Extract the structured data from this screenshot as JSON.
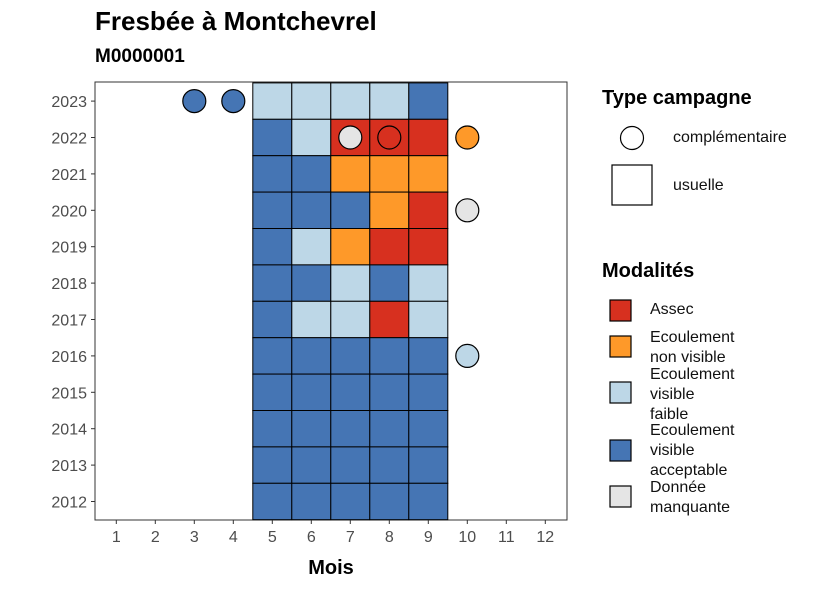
{
  "chart_data": {
    "type": "heatmap",
    "title": "Fresbée à Montchevrel",
    "subtitle": "M0000001",
    "xlabel": "Mois",
    "ylabel": "",
    "x_ticks": [
      "1",
      "2",
      "3",
      "4",
      "5",
      "6",
      "7",
      "8",
      "9",
      "10",
      "11",
      "12"
    ],
    "y_ticks": [
      "2012",
      "2013",
      "2014",
      "2015",
      "2016",
      "2017",
      "2018",
      "2019",
      "2020",
      "2021",
      "2022",
      "2023"
    ],
    "grid": false,
    "legend_position": "right",
    "colors": {
      "Assec": "#d7301f",
      "Ecoulement non visible": "#fe9929",
      "Ecoulement visible faible": "#bdd7e7",
      "Ecoulement visible acceptable": "#4575b4",
      "Donnée manquante": "#e5e5e5"
    },
    "usuelle": [
      {
        "year": 2023,
        "cells": {
          "5": "Ecoulement visible faible",
          "6": "Ecoulement visible faible",
          "7": "Ecoulement visible faible",
          "8": "Ecoulement visible faible",
          "9": "Ecoulement visible acceptable"
        }
      },
      {
        "year": 2022,
        "cells": {
          "5": "Ecoulement visible acceptable",
          "6": "Ecoulement visible faible",
          "7": "Assec",
          "8": "Assec",
          "9": "Assec"
        }
      },
      {
        "year": 2021,
        "cells": {
          "5": "Ecoulement visible acceptable",
          "6": "Ecoulement visible acceptable",
          "7": "Ecoulement non visible",
          "8": "Ecoulement non visible",
          "9": "Ecoulement non visible"
        }
      },
      {
        "year": 2020,
        "cells": {
          "5": "Ecoulement visible acceptable",
          "6": "Ecoulement visible acceptable",
          "7": "Ecoulement visible acceptable",
          "8": "Ecoulement non visible",
          "9": "Assec"
        }
      },
      {
        "year": 2019,
        "cells": {
          "5": "Ecoulement visible acceptable",
          "6": "Ecoulement visible faible",
          "7": "Ecoulement non visible",
          "8": "Assec",
          "9": "Assec"
        }
      },
      {
        "year": 2018,
        "cells": {
          "5": "Ecoulement visible acceptable",
          "6": "Ecoulement visible acceptable",
          "7": "Ecoulement visible faible",
          "8": "Ecoulement visible acceptable",
          "9": "Ecoulement visible faible"
        }
      },
      {
        "year": 2017,
        "cells": {
          "5": "Ecoulement visible acceptable",
          "6": "Ecoulement visible faible",
          "7": "Ecoulement visible faible",
          "8": "Assec",
          "9": "Ecoulement visible faible"
        }
      },
      {
        "year": 2016,
        "cells": {
          "5": "Ecoulement visible acceptable",
          "6": "Ecoulement visible acceptable",
          "7": "Ecoulement visible acceptable",
          "8": "Ecoulement visible acceptable",
          "9": "Ecoulement visible acceptable"
        }
      },
      {
        "year": 2015,
        "cells": {
          "5": "Ecoulement visible acceptable",
          "6": "Ecoulement visible acceptable",
          "7": "Ecoulement visible acceptable",
          "8": "Ecoulement visible acceptable",
          "9": "Ecoulement visible acceptable"
        }
      },
      {
        "year": 2014,
        "cells": {
          "5": "Ecoulement visible acceptable",
          "6": "Ecoulement visible acceptable",
          "7": "Ecoulement visible acceptable",
          "8": "Ecoulement visible acceptable",
          "9": "Ecoulement visible acceptable"
        }
      },
      {
        "year": 2013,
        "cells": {
          "5": "Ecoulement visible acceptable",
          "6": "Ecoulement visible acceptable",
          "7": "Ecoulement visible acceptable",
          "8": "Ecoulement visible acceptable",
          "9": "Ecoulement visible acceptable"
        }
      },
      {
        "year": 2012,
        "cells": {
          "5": "Ecoulement visible acceptable",
          "6": "Ecoulement visible acceptable",
          "7": "Ecoulement visible acceptable",
          "8": "Ecoulement visible acceptable",
          "9": "Ecoulement visible acceptable"
        }
      }
    ],
    "complementaire": [
      {
        "year": 2023,
        "month": 3,
        "modalite": "Ecoulement visible acceptable"
      },
      {
        "year": 2023,
        "month": 4,
        "modalite": "Ecoulement visible acceptable"
      },
      {
        "year": 2022,
        "month": 7,
        "modalite": "Donnée manquante"
      },
      {
        "year": 2022,
        "month": 8,
        "modalite": "Assec"
      },
      {
        "year": 2022,
        "month": 10,
        "modalite": "Ecoulement non visible"
      },
      {
        "year": 2020,
        "month": 10,
        "modalite": "Donnée manquante"
      },
      {
        "year": 2016,
        "month": 10,
        "modalite": "Ecoulement visible faible"
      }
    ]
  },
  "legend": {
    "type_title": "Type campagne",
    "type_items": [
      "complémentaire",
      "usuelle"
    ],
    "mod_title": "Modalités",
    "mod_items": [
      {
        "label": "Assec",
        "color": "#d7301f"
      },
      {
        "label": "Ecoulement\nnon visible",
        "color": "#fe9929"
      },
      {
        "label": "Ecoulement\nvisible\nfaible",
        "color": "#bdd7e7"
      },
      {
        "label": "Ecoulement\nvisible\nacceptable",
        "color": "#4575b4"
      },
      {
        "label": "Donnée\nmanquante",
        "color": "#e5e5e5"
      }
    ]
  }
}
